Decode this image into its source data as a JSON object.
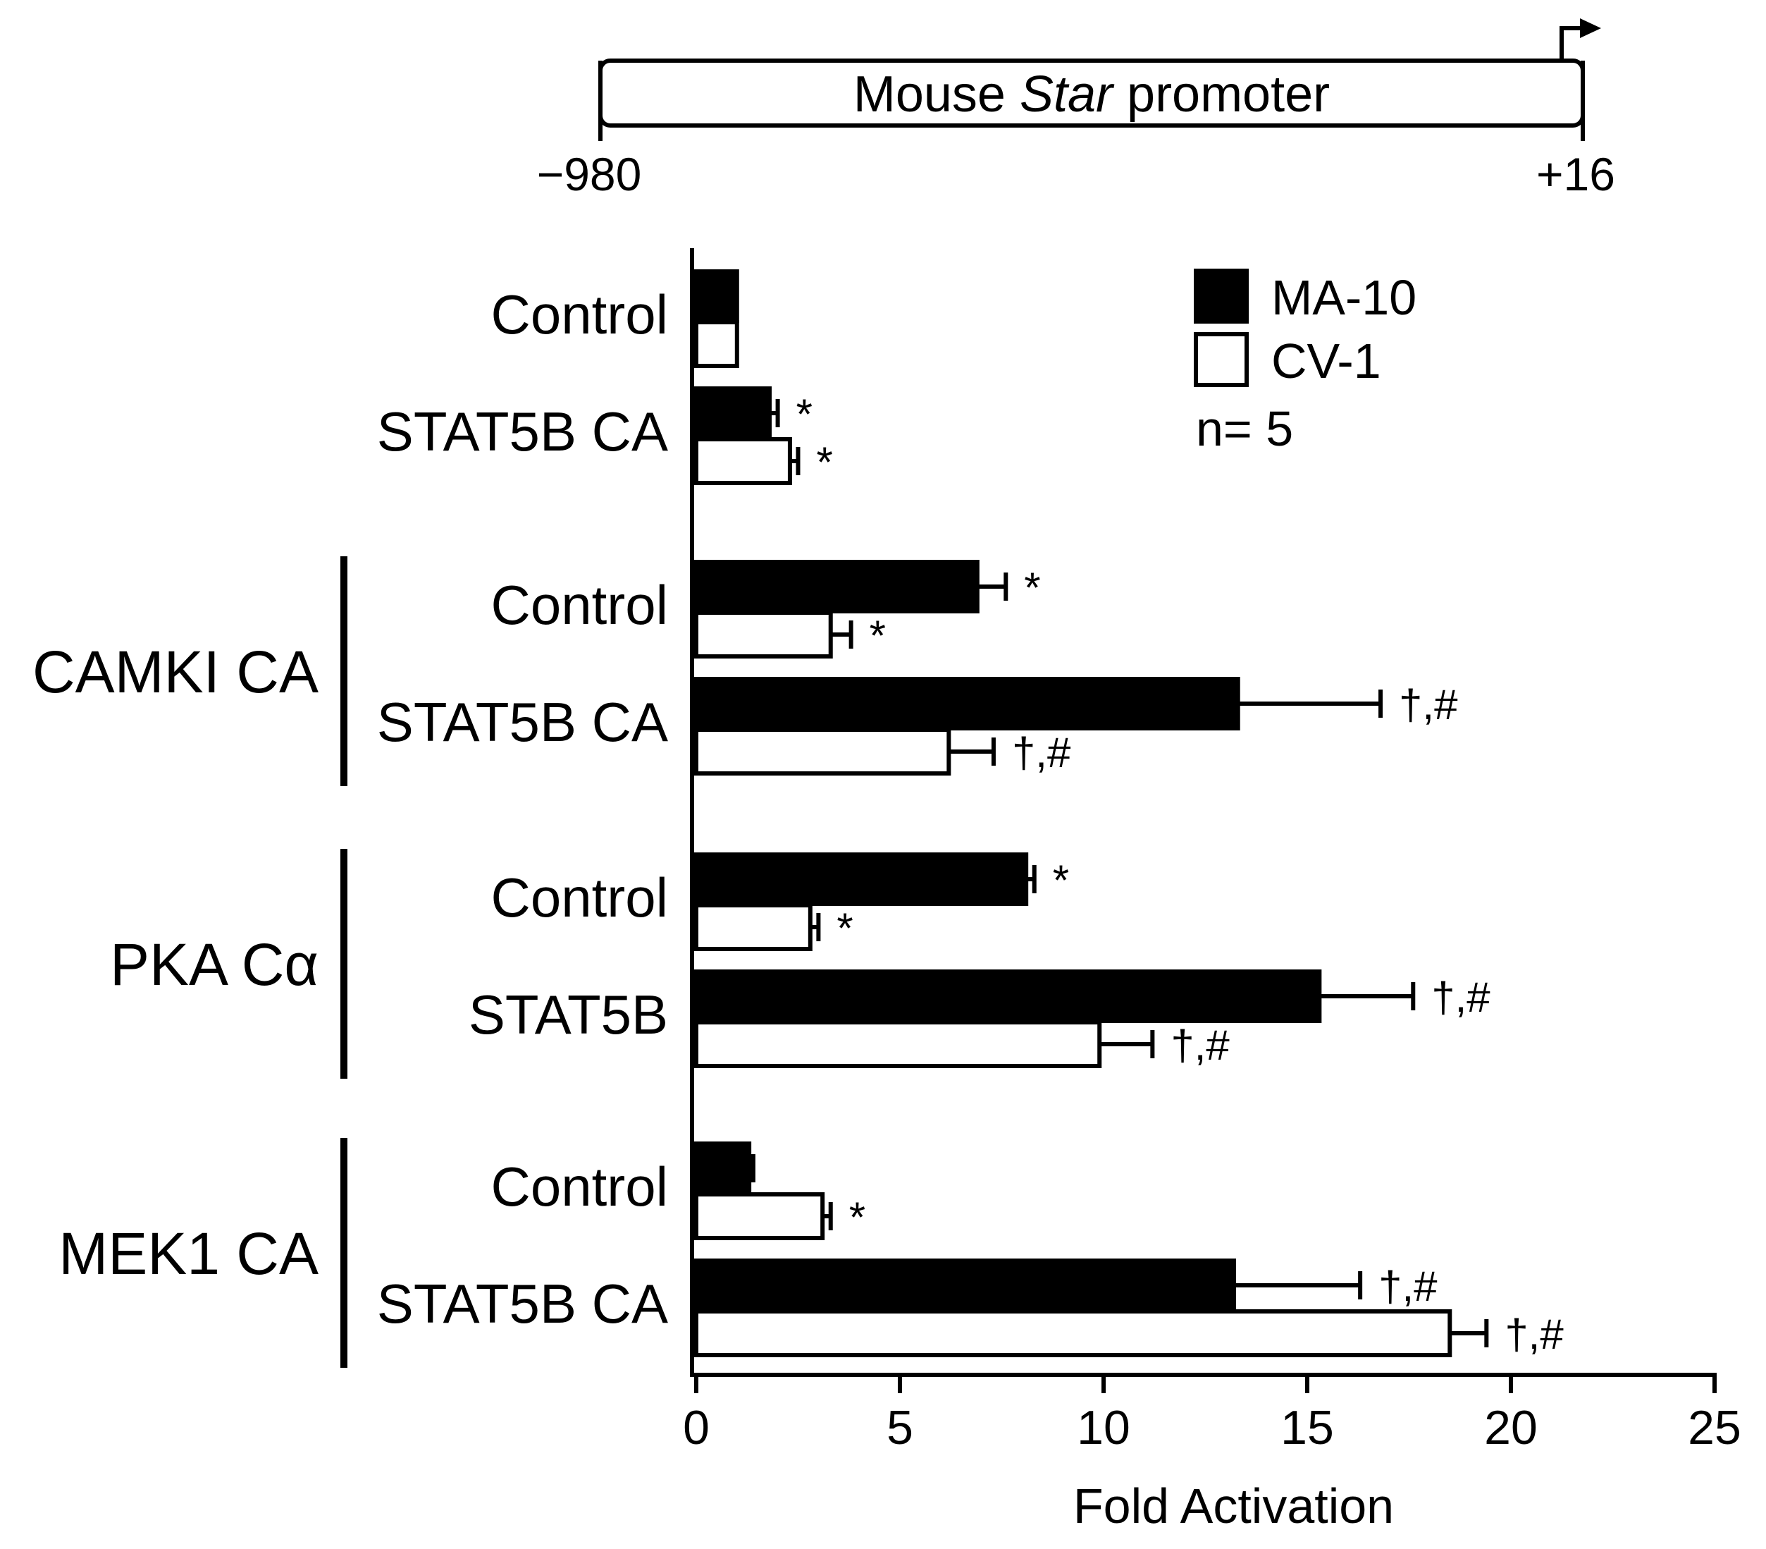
{
  "promoter": {
    "label_prefix": "Mouse ",
    "label_italic": "Star",
    "label_suffix": " promoter",
    "start": "−980",
    "end": "+16"
  },
  "legend": {
    "entries": [
      {
        "label": "MA-10",
        "fill": "#000000"
      },
      {
        "label": "CV-1",
        "fill": "#ffffff"
      }
    ],
    "n_label": "n= 5"
  },
  "chart_data": {
    "type": "bar",
    "orientation": "horizontal",
    "xlabel": "Fold Activation",
    "xlim": [
      0,
      25
    ],
    "xticks": [
      0,
      5,
      10,
      15,
      20,
      25
    ],
    "legend_position": "top-right",
    "grid": false,
    "series": [
      {
        "name": "MA-10",
        "color": "#000000"
      },
      {
        "name": "CV-1",
        "color": "#ffffff"
      }
    ],
    "groups": [
      {
        "label": "",
        "categories": [
          {
            "label": "Control",
            "values": [
              1.0,
              1.0
            ],
            "errors": [
              0,
              0
            ],
            "annotations": [
              "",
              ""
            ]
          },
          {
            "label": "STAT5B CA",
            "values": [
              1.8,
              2.3
            ],
            "errors": [
              0.2,
              0.2
            ],
            "annotations": [
              "*",
              "*"
            ]
          }
        ]
      },
      {
        "label": "CAMKI CA",
        "categories": [
          {
            "label": "Control",
            "values": [
              6.9,
              3.3
            ],
            "errors": [
              0.7,
              0.5
            ],
            "annotations": [
              "*",
              "*"
            ]
          },
          {
            "label": "STAT5B CA",
            "values": [
              13.3,
              6.2
            ],
            "errors": [
              3.5,
              1.1
            ],
            "annotations": [
              "†,#",
              "†,#"
            ]
          }
        ]
      },
      {
        "label": "PKA Cα",
        "categories": [
          {
            "label": "Control",
            "values": [
              8.1,
              2.8
            ],
            "errors": [
              0.2,
              0.2
            ],
            "annotations": [
              "*",
              "*"
            ]
          },
          {
            "label": "STAT5B",
            "values": [
              15.3,
              9.9
            ],
            "errors": [
              2.3,
              1.3
            ],
            "annotations": [
              "†,#",
              "†,#"
            ]
          }
        ]
      },
      {
        "label": "MEK1 CA",
        "categories": [
          {
            "label": "Control",
            "values": [
              1.3,
              3.1
            ],
            "errors": [
              0.1,
              0.2
            ],
            "annotations": [
              "",
              "*"
            ]
          },
          {
            "label": "STAT5B CA",
            "values": [
              13.2,
              18.5
            ],
            "errors": [
              3.1,
              0.9
            ],
            "annotations": [
              "†,#",
              "†,#"
            ]
          }
        ]
      }
    ]
  }
}
